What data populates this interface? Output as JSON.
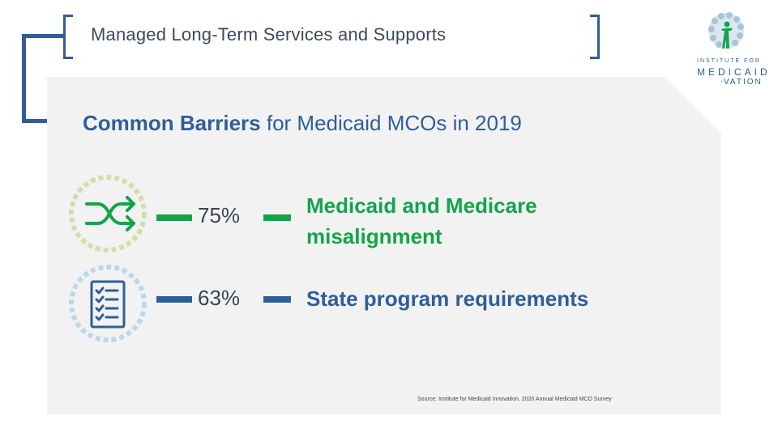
{
  "header": {
    "title": "Managed Long-Term Services and Supports"
  },
  "logo": {
    "line1": "INSTITUTE FOR",
    "line2": "MEDICAID",
    "line3": "INNOVATION"
  },
  "subtitle": {
    "bold_part": "Common Barriers",
    "rest": " for Medicaid MCOs in 2019"
  },
  "barriers": [
    {
      "icon": "shuffle-icon",
      "percent": "75%",
      "label_line1": "Medicaid and Medicare",
      "label_line2": "misalignment",
      "color": "#13a44a"
    },
    {
      "icon": "checklist-icon",
      "percent": "63%",
      "label_line1": "State program requirements",
      "label_line2": "",
      "color": "#2f5e98"
    }
  ],
  "source": "Source: Institute for Medicaid Innovation. 2020 Annual Medicaid MCO Survey",
  "colors": {
    "brand_blue": "#2f5e98",
    "brand_green": "#13a44a",
    "panel_bg": "#f2f2f2"
  }
}
